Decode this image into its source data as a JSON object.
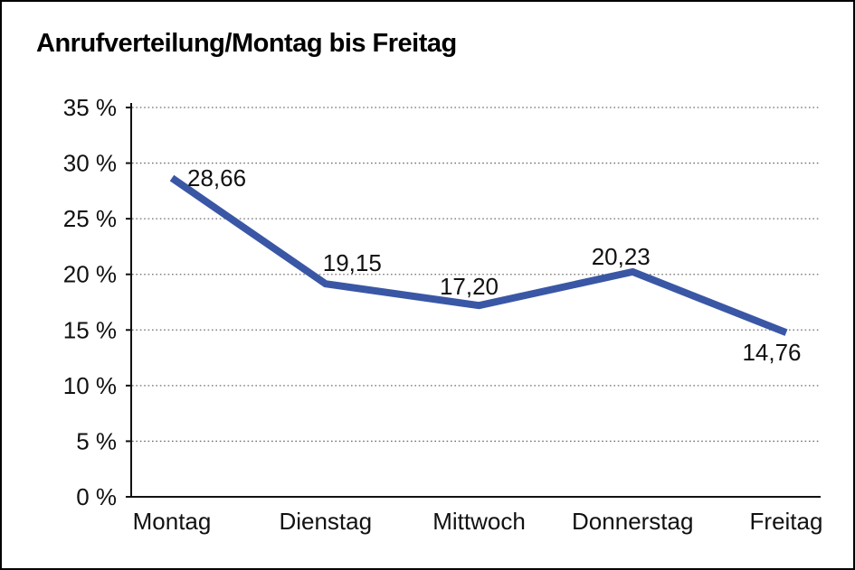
{
  "window": {
    "background": "#FFFFFF",
    "border_color": "#000000"
  },
  "header": {
    "title": "Anrufverteilung/Montag bis Freitag"
  },
  "chart_data": {
    "type": "line",
    "title": "Anrufverteilung/Montag bis Freitag",
    "categories": [
      "Montag",
      "Dienstag",
      "Mittwoch",
      "Donnerstag",
      "Freitag"
    ],
    "series": [
      {
        "name": "Anrufverteilung",
        "values": [
          28.66,
          19.15,
          17.2,
          20.23,
          14.76
        ],
        "color": "#3A57A6"
      }
    ],
    "data_labels": [
      "28,66",
      "19,15",
      "17,20",
      "20,23",
      "14,76"
    ],
    "xlabel": "",
    "ylabel": "",
    "y_unit": "%",
    "ylim": [
      0,
      35
    ],
    "y_ticks": [
      0,
      5,
      10,
      15,
      20,
      25,
      30,
      35
    ],
    "y_tick_labels": [
      "0 %",
      "5 %",
      "10 %",
      "15 %",
      "20 %",
      "25 %",
      "30 %",
      "35 %"
    ],
    "grid": {
      "horizontal": true,
      "vertical": false,
      "style": "dotted",
      "color": "#6e6e6e"
    },
    "legend_position": "none",
    "axis_color": "#111111",
    "label_color": "#111111"
  }
}
